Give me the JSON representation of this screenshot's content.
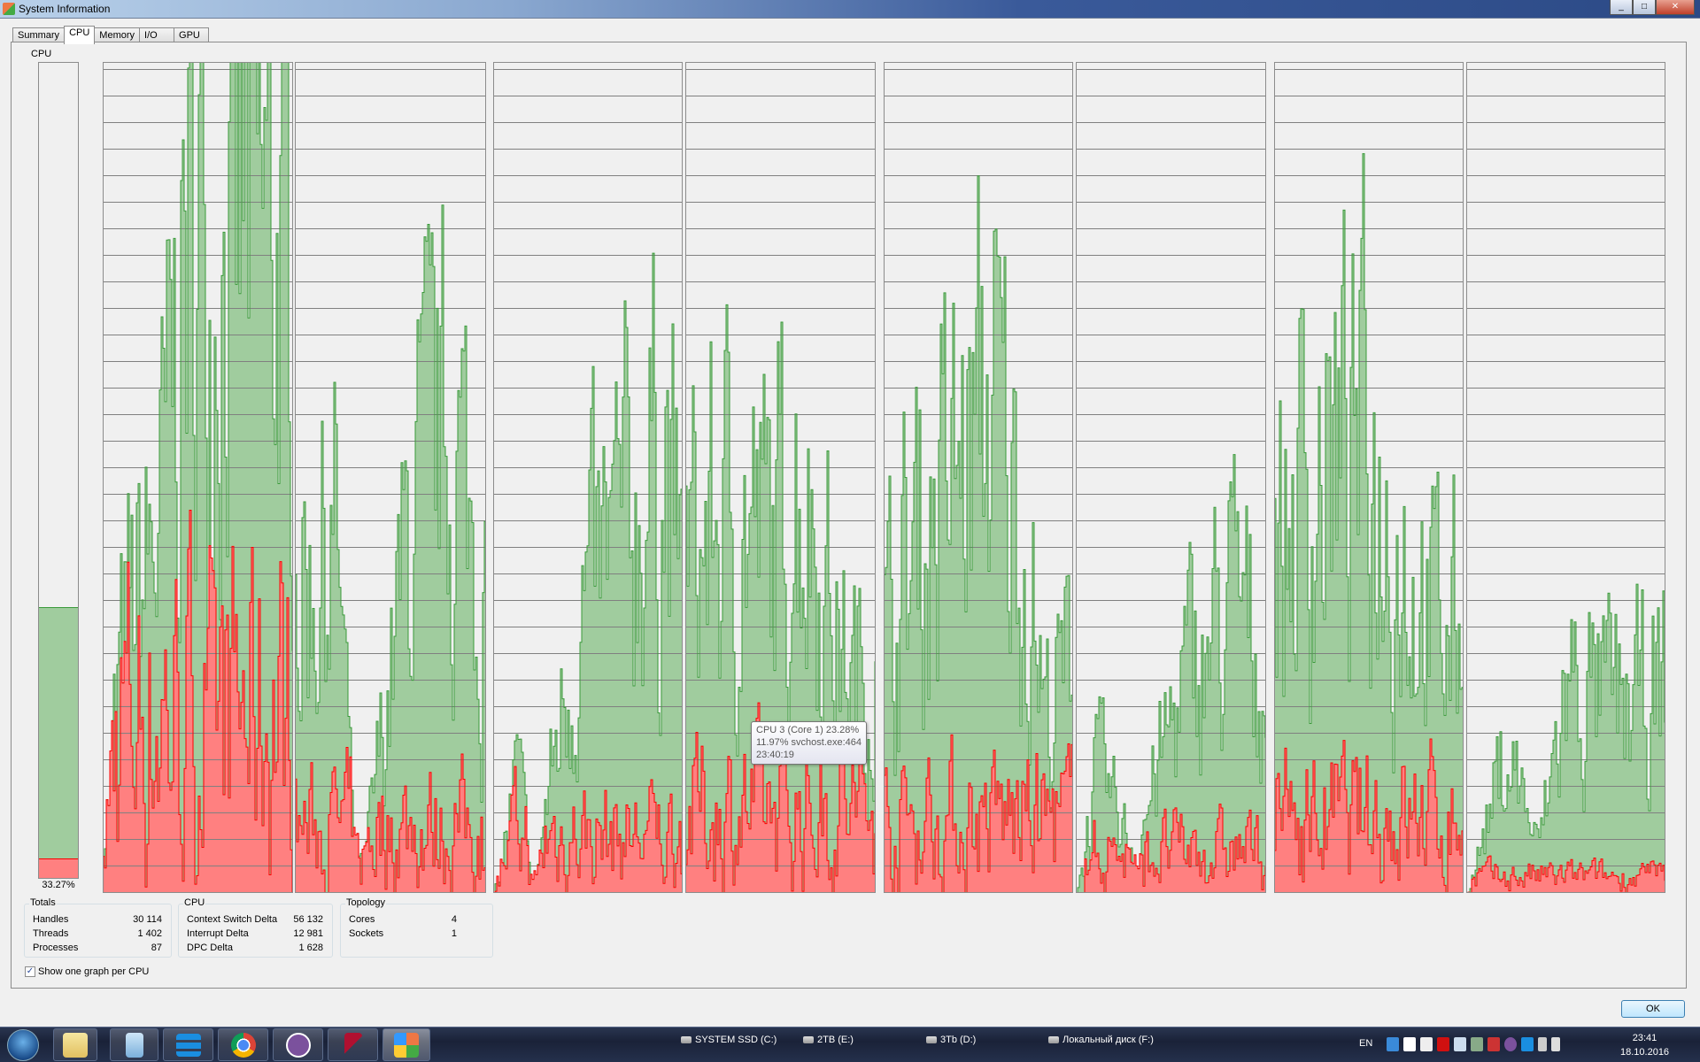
{
  "window": {
    "title": "System Information",
    "ok_label": "OK"
  },
  "tabs": [
    {
      "label": "Summary"
    },
    {
      "label": "CPU",
      "active": true
    },
    {
      "label": "Memory"
    },
    {
      "label": "I/O"
    },
    {
      "label": "GPU"
    }
  ],
  "cpu": {
    "label": "CPU",
    "total_usage_percent": 33.27,
    "total_usage_text": "33.27%",
    "kernel_usage_percent": 2.4,
    "graph_count": 8,
    "colors": {
      "user_fill": "#a0cc9e",
      "user_line": "#3a9a3a",
      "kernel_fill": "#ff8080",
      "kernel_line": "#ff0000",
      "background": "#f0f0f0",
      "grid": "#808080"
    }
  },
  "tooltip": {
    "line1": "CPU 3 (Core 1) 23.28%",
    "line2": "11.97% svchost.exe:464",
    "line3": "23:40:19"
  },
  "totals": {
    "legend": "Totals",
    "rows": [
      {
        "label": "Handles",
        "value": "30 114"
      },
      {
        "label": "Threads",
        "value": "1 402"
      },
      {
        "label": "Processes",
        "value": "87"
      }
    ]
  },
  "cpu_stats": {
    "legend": "CPU",
    "rows": [
      {
        "label": "Context Switch Delta",
        "value": "56 132"
      },
      {
        "label": "Interrupt Delta",
        "value": "12 981"
      },
      {
        "label": "DPC Delta",
        "value": "1 628"
      }
    ]
  },
  "topology": {
    "legend": "Topology",
    "rows": [
      {
        "label": "Cores",
        "value": "4"
      },
      {
        "label": "Sockets",
        "value": "1"
      }
    ]
  },
  "options": {
    "one_graph_per_cpu_label": "Show one graph per CPU",
    "one_graph_per_cpu_checked": true
  },
  "taskbar": {
    "apps": [
      {
        "icon": "explorer-icon"
      },
      {
        "icon": "calculator-icon"
      },
      {
        "icon": "stack-app-icon"
      },
      {
        "icon": "chrome-icon"
      },
      {
        "icon": "viber-icon"
      },
      {
        "icon": "red-arrow-app-icon"
      },
      {
        "icon": "system-information-icon",
        "active": true
      }
    ],
    "drives": [
      {
        "label": "SYSTEM SSD (C:)"
      },
      {
        "label": "2TB (E:)"
      },
      {
        "label": "3Tb (D:)"
      },
      {
        "label": "Локальный диск (F:)"
      }
    ],
    "language": "EN",
    "time": "23:41",
    "date": "18.10.2016"
  }
}
